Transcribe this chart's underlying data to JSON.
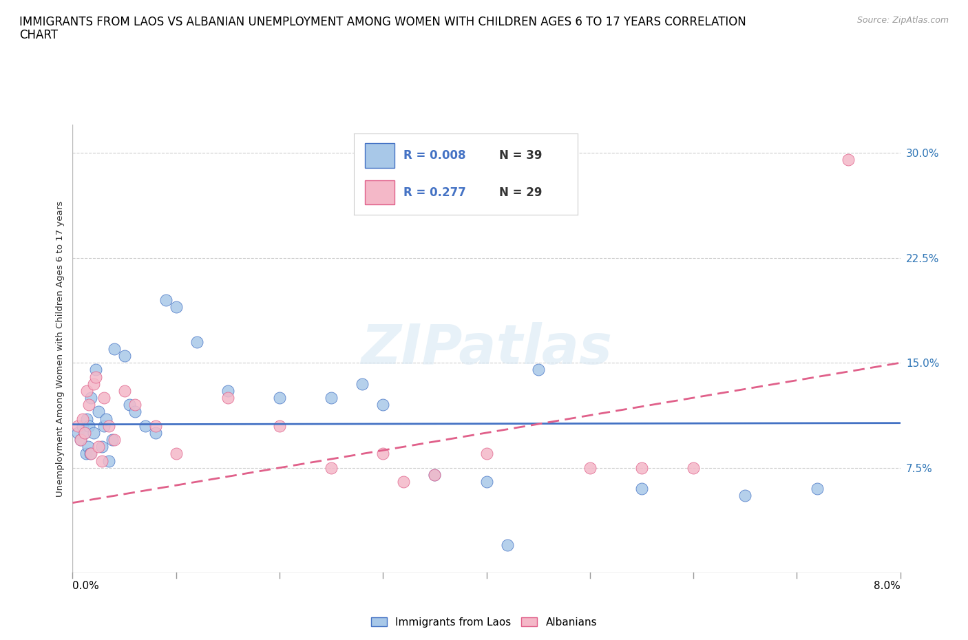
{
  "title_line1": "IMMIGRANTS FROM LAOS VS ALBANIAN UNEMPLOYMENT AMONG WOMEN WITH CHILDREN AGES 6 TO 17 YEARS CORRELATION",
  "title_line2": "CHART",
  "source": "Source: ZipAtlas.com",
  "ylabel": "Unemployment Among Women with Children Ages 6 to 17 years",
  "watermark": "ZIPatlas",
  "blue_scatter_x": [
    0.05,
    0.08,
    0.1,
    0.12,
    0.13,
    0.14,
    0.15,
    0.16,
    0.17,
    0.18,
    0.2,
    0.22,
    0.25,
    0.28,
    0.3,
    0.32,
    0.35,
    0.38,
    0.4,
    0.5,
    0.55,
    0.6,
    0.7,
    0.8,
    0.9,
    1.0,
    1.2,
    1.5,
    2.0,
    2.5,
    2.8,
    3.0,
    3.5,
    4.0,
    4.5,
    5.5,
    6.5,
    7.2,
    4.2
  ],
  "blue_scatter_y": [
    10.0,
    9.5,
    10.5,
    10.0,
    8.5,
    11.0,
    9.0,
    10.5,
    8.5,
    12.5,
    10.0,
    14.5,
    11.5,
    9.0,
    10.5,
    11.0,
    8.0,
    9.5,
    16.0,
    15.5,
    12.0,
    11.5,
    10.5,
    10.0,
    19.5,
    19.0,
    16.5,
    13.0,
    12.5,
    12.5,
    13.5,
    12.0,
    7.0,
    6.5,
    14.5,
    6.0,
    5.5,
    6.0,
    2.0
  ],
  "pink_scatter_x": [
    0.05,
    0.08,
    0.1,
    0.12,
    0.14,
    0.16,
    0.18,
    0.2,
    0.22,
    0.25,
    0.28,
    0.3,
    0.35,
    0.4,
    0.5,
    0.6,
    0.8,
    1.0,
    1.5,
    2.0,
    2.5,
    3.0,
    3.5,
    4.0,
    5.5,
    6.0,
    7.5,
    3.2,
    5.0
  ],
  "pink_scatter_y": [
    10.5,
    9.5,
    11.0,
    10.0,
    13.0,
    12.0,
    8.5,
    13.5,
    14.0,
    9.0,
    8.0,
    12.5,
    10.5,
    9.5,
    13.0,
    12.0,
    10.5,
    8.5,
    12.5,
    10.5,
    7.5,
    8.5,
    7.0,
    8.5,
    7.5,
    7.5,
    29.5,
    6.5,
    7.5
  ],
  "blue_line_y_at_0": 10.6,
  "blue_line_y_at_8": 10.7,
  "pink_line_y_at_0": 5.0,
  "pink_line_y_at_8": 15.0,
  "blue_line_color": "#4472C4",
  "pink_line_color": "#E0608A",
  "blue_scatter_color": "#A8C8E8",
  "pink_scatter_color": "#F4B8C8",
  "blue_R": "0.008",
  "blue_N": "39",
  "pink_R": "0.277",
  "pink_N": "29",
  "xmin": 0.0,
  "xmax": 8.0,
  "ymin": 0.0,
  "ymax": 32.0,
  "yticks_right": [
    7.5,
    15.0,
    22.5,
    30.0
  ],
  "grid_color": "#CCCCCC",
  "background_color": "#FFFFFF",
  "title_fontsize": 12,
  "label_fontsize": 9.5,
  "tick_fontsize": 11,
  "legend_fontsize": 12,
  "source_fontsize": 9
}
